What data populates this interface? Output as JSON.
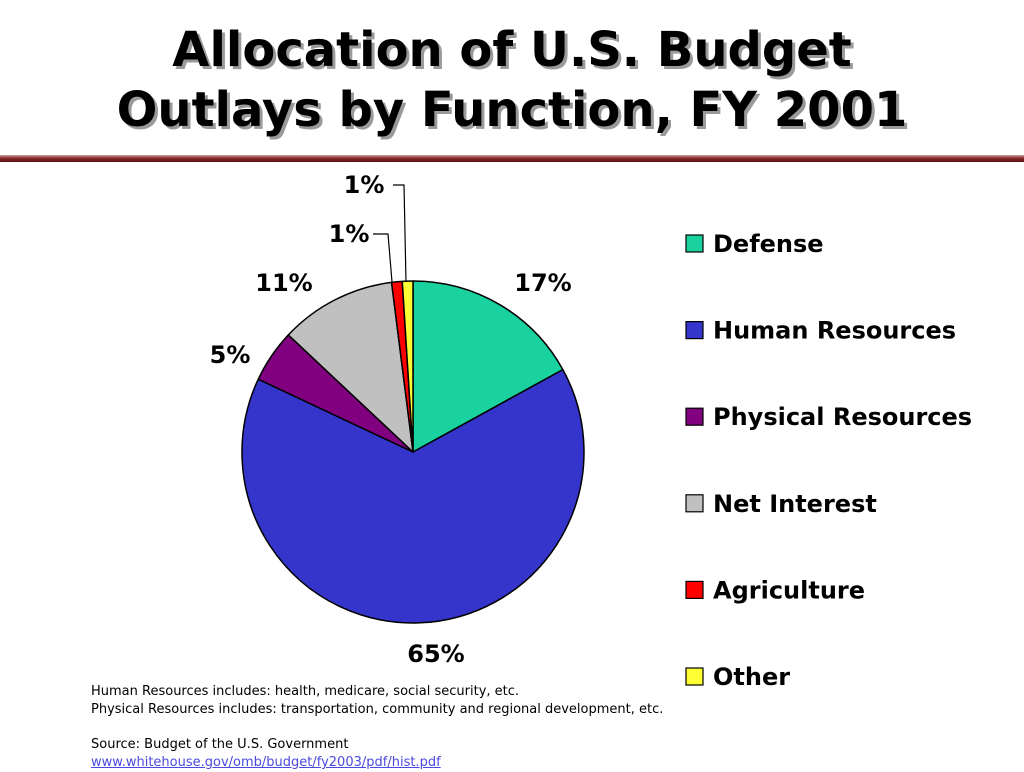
{
  "title_line1": "Allocation of U.S. Budget",
  "title_line2": "Outlays by Function, FY 2001",
  "notes": {
    "line1": "Human Resources includes:  health, medicare, social security, etc.",
    "line2": "Physical Resources includes: transportation, community and regional development, etc.",
    "source": "Source:  Budget of the U.S. Government",
    "link": "www.whitehouse.gov/omb/budget/fy2003/pdf/hist.pdf"
  },
  "colors": {
    "title_rule": "#8a2b2b",
    "link": "#4a4adf"
  },
  "chart_data": {
    "type": "pie",
    "start_angle_deg": 0,
    "direction": "clockwise",
    "legend_position": "right",
    "slices": [
      {
        "name": "Defense",
        "value": 17,
        "label": "17%",
        "color": "#19d2a0"
      },
      {
        "name": "Human Resources",
        "value": 65,
        "label": "65%",
        "color": "#3535cc"
      },
      {
        "name": "Physical Resources",
        "value": 5,
        "label": "5%",
        "color": "#800080"
      },
      {
        "name": "Net Interest",
        "value": 11,
        "label": "11%",
        "color": "#c0c0c0"
      },
      {
        "name": "Agriculture",
        "value": 1,
        "label": "1%",
        "color": "#ff0000"
      },
      {
        "name": "Other",
        "value": 1,
        "label": "1%",
        "color": "#ffff33"
      }
    ]
  }
}
